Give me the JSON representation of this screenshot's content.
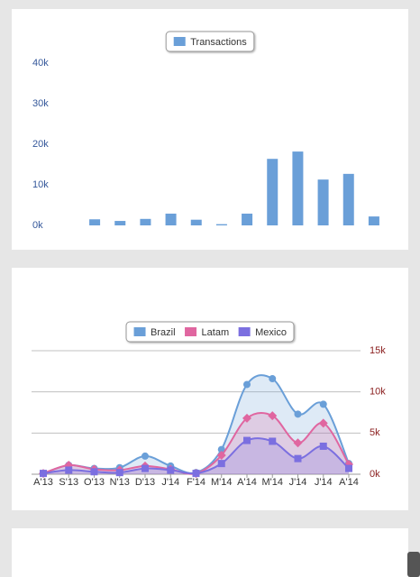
{
  "chart_data": [
    {
      "type": "bar",
      "categories": [
        null,
        null,
        null,
        null,
        null,
        null,
        null,
        null,
        null,
        null,
        null,
        null
      ],
      "series": [
        {
          "name": "Transactions",
          "color": "#6a9fd8",
          "values": [
            1500,
            1100,
            1600,
            2900,
            1400,
            300,
            2900,
            16400,
            18200,
            11300,
            12700,
            2200
          ]
        }
      ],
      "ylim": [
        0,
        40000
      ],
      "yticks": [
        {
          "value": 0,
          "label": "0k"
        },
        {
          "value": 10000,
          "label": "10k"
        },
        {
          "value": 20000,
          "label": "20k"
        },
        {
          "value": 30000,
          "label": "30k"
        },
        {
          "value": 40000,
          "label": "40k"
        }
      ],
      "tick_color": "#34579a",
      "grid": false,
      "legend": "top"
    },
    {
      "type": "area",
      "categories": [
        "A'13",
        "S'13",
        "O'13",
        "N'13",
        "D'13",
        "J'14",
        "F'14",
        "M'14",
        "A'14",
        "M'14",
        "J'14",
        "J'14",
        "A'14"
      ],
      "series": [
        {
          "name": "Brazil",
          "color": "#6a9fd8",
          "marker": "circle",
          "values": [
            100,
            1100,
            700,
            800,
            2200,
            1000,
            200,
            3000,
            10900,
            11600,
            7300,
            8500,
            1300
          ]
        },
        {
          "name": "Latam",
          "color": "#e066a0",
          "marker": "diamond",
          "values": [
            100,
            1100,
            600,
            500,
            1000,
            600,
            100,
            2300,
            6800,
            7100,
            3800,
            6200,
            1200
          ]
        },
        {
          "name": "Mexico",
          "color": "#7b6fe0",
          "marker": "square",
          "values": [
            100,
            500,
            300,
            200,
            700,
            500,
            100,
            1300,
            4100,
            4000,
            1900,
            3400,
            700
          ]
        }
      ],
      "ylim": [
        0,
        15000
      ],
      "yticks": [
        {
          "value": 0,
          "label": "0k"
        },
        {
          "value": 5000,
          "label": "5k"
        },
        {
          "value": 10000,
          "label": "10k"
        },
        {
          "value": 15000,
          "label": "15k"
        }
      ],
      "tick_color": "#8b2020",
      "grid": true,
      "legend": "top"
    }
  ]
}
